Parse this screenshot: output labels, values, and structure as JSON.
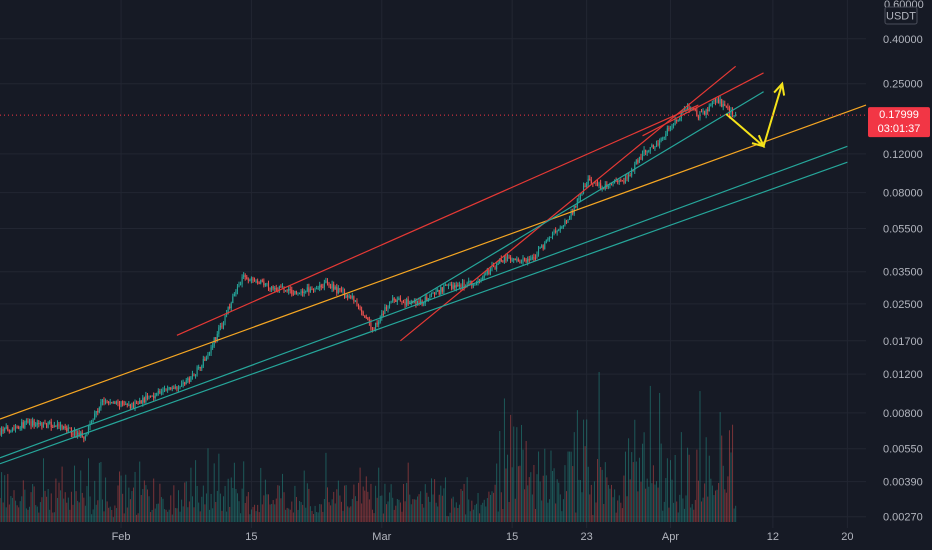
{
  "colors": {
    "background": "#161a25",
    "grid": "#222632",
    "up": "#26a69a",
    "down": "#ef5350",
    "current_price": "#f23645",
    "channel_red": "#e53935",
    "channel_orange": "#f5a623",
    "channel_teal": "#26a69a",
    "arrow_yellow": "#f5e31a",
    "axis_text": "#b2b5be"
  },
  "axis": {
    "currency": "USDT",
    "top_partial_label": "0.60000",
    "scale": "log"
  },
  "current_price": {
    "value": 0.17999,
    "label": "0.17999",
    "countdown": "03:01:37"
  },
  "chart_data": {
    "type": "candlestick",
    "title": "",
    "y_scale": "log",
    "ylim": [
      0.0024,
      0.6
    ],
    "xlim": [
      "2021-01-19",
      "2021-04-22"
    ],
    "y_ticks": [
      0.4,
      0.25,
      0.12,
      0.08,
      0.055,
      0.035,
      0.025,
      0.017,
      0.012,
      0.008,
      0.0055,
      0.0039,
      0.0027
    ],
    "y_tick_labels": [
      "0.40000",
      "0.25000",
      "0.12000",
      "0.08000",
      "0.05500",
      "0.03500",
      "0.02500",
      "0.01700",
      "0.01200",
      "0.00800",
      "0.00550",
      "0.00390",
      "0.00270"
    ],
    "x_ticks": [
      "2021-02-01",
      "2021-02-15",
      "2021-03-01",
      "2021-03-15",
      "2021-03-23",
      "2021-04-01",
      "2021-04-12",
      "2021-04-20"
    ],
    "x_tick_labels": [
      "Feb",
      "15",
      "Mar",
      "15",
      "23",
      "Apr",
      "12",
      "20"
    ],
    "grid": true,
    "price_path": [
      [
        "2021-01-19",
        0.0066
      ],
      [
        "2021-01-22",
        0.0072
      ],
      [
        "2021-01-25",
        0.007
      ],
      [
        "2021-01-28",
        0.0063
      ],
      [
        "2021-01-30",
        0.009
      ],
      [
        "2021-02-02",
        0.0086
      ],
      [
        "2021-02-05",
        0.0099
      ],
      [
        "2021-02-08",
        0.011
      ],
      [
        "2021-02-10",
        0.014
      ],
      [
        "2021-02-12",
        0.021
      ],
      [
        "2021-02-14",
        0.033
      ],
      [
        "2021-02-17",
        0.03
      ],
      [
        "2021-02-20",
        0.028
      ],
      [
        "2021-02-23",
        0.031
      ],
      [
        "2021-02-26",
        0.026
      ],
      [
        "2021-02-28",
        0.019
      ],
      [
        "2021-03-02",
        0.026
      ],
      [
        "2021-03-05",
        0.025
      ],
      [
        "2021-03-08",
        0.03
      ],
      [
        "2021-03-11",
        0.031
      ],
      [
        "2021-03-14",
        0.04
      ],
      [
        "2021-03-17",
        0.039
      ],
      [
        "2021-03-19",
        0.05
      ],
      [
        "2021-03-21",
        0.06
      ],
      [
        "2021-03-23",
        0.09
      ],
      [
        "2021-03-25",
        0.085
      ],
      [
        "2021-03-27",
        0.09
      ],
      [
        "2021-03-29",
        0.12
      ],
      [
        "2021-03-31",
        0.14
      ],
      [
        "2021-04-02",
        0.18
      ],
      [
        "2021-04-03",
        0.195
      ],
      [
        "2021-04-04",
        0.18
      ],
      [
        "2021-04-05",
        0.19
      ],
      [
        "2021-04-06",
        0.215
      ],
      [
        "2021-04-07",
        0.19
      ],
      [
        "2021-04-08",
        0.18
      ]
    ],
    "trendlines": [
      {
        "color": "channel_orange",
        "from": [
          "2021-01-19",
          0.0075
        ],
        "to": [
          "2021-04-22",
          0.2
        ]
      },
      {
        "color": "channel_red",
        "from": [
          "2021-02-07",
          0.018
        ],
        "to": [
          "2021-04-04",
          0.2
        ]
      },
      {
        "color": "channel_red",
        "from": [
          "2021-03-03",
          0.017
        ],
        "to": [
          "2021-04-08",
          0.3
        ]
      },
      {
        "color": "channel_red",
        "from": [
          "2021-03-29",
          0.145
        ],
        "to": [
          "2021-04-11",
          0.28
        ]
      },
      {
        "color": "channel_teal",
        "from": [
          "2021-01-19",
          0.005
        ],
        "to": [
          "2021-04-20",
          0.13
        ]
      },
      {
        "color": "channel_teal",
        "from": [
          "2021-01-19",
          0.0047
        ],
        "to": [
          "2021-04-20",
          0.11
        ]
      },
      {
        "color": "channel_teal",
        "from": [
          "2021-03-04",
          0.025
        ],
        "to": [
          "2021-04-11",
          0.23
        ]
      }
    ],
    "projection": [
      [
        "2021-04-07",
        0.182
      ],
      [
        "2021-04-11",
        0.13
      ],
      [
        "2021-04-13",
        0.25
      ]
    ]
  }
}
